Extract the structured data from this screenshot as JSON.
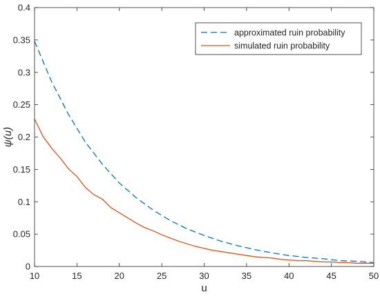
{
  "chart_data": {
    "type": "line",
    "xlabel": "u",
    "ylabel": "ψ(u)",
    "xlim": [
      10,
      50
    ],
    "ylim": [
      0,
      0.4
    ],
    "xticks": [
      "10",
      "15",
      "20",
      "25",
      "30",
      "35",
      "40",
      "45",
      "50"
    ],
    "yticks": [
      "0",
      "0.05",
      "0.1",
      "0.15",
      "0.2",
      "0.25",
      "0.3",
      "0.35",
      "0.4"
    ],
    "grid": false,
    "legend_position": "top-right",
    "series": [
      {
        "name": "approximated ruin probability",
        "color": "#0072BD",
        "style": "dashed",
        "x": [
          10,
          12,
          14,
          16,
          18,
          20,
          22,
          24,
          26,
          28,
          30,
          32,
          34,
          36,
          38,
          40,
          42,
          44,
          46,
          48,
          50
        ],
        "y": [
          0.348,
          0.286,
          0.235,
          0.192,
          0.158,
          0.129,
          0.106,
          0.087,
          0.071,
          0.058,
          0.048,
          0.039,
          0.032,
          0.026,
          0.021,
          0.017,
          0.014,
          0.012,
          0.009,
          0.008,
          0.006
        ]
      },
      {
        "name": "simulated ruin probability",
        "color": "#D95319",
        "style": "solid",
        "x": [
          10,
          11,
          12,
          13,
          14,
          15,
          16,
          17,
          18,
          19,
          20,
          21,
          22,
          23,
          24,
          25,
          26,
          27,
          28,
          29,
          30,
          31,
          32,
          33,
          34,
          35,
          36,
          37,
          38,
          39,
          40,
          41,
          42,
          43,
          44,
          45,
          46,
          47,
          48,
          49,
          50
        ],
        "y": [
          0.228,
          0.201,
          0.183,
          0.168,
          0.151,
          0.139,
          0.122,
          0.111,
          0.104,
          0.091,
          0.083,
          0.075,
          0.067,
          0.06,
          0.055,
          0.049,
          0.044,
          0.039,
          0.035,
          0.031,
          0.028,
          0.025,
          0.023,
          0.021,
          0.019,
          0.017,
          0.015,
          0.014,
          0.013,
          0.011,
          0.01,
          0.009,
          0.009,
          0.008,
          0.007,
          0.007,
          0.006,
          0.006,
          0.005,
          0.005,
          0.005
        ]
      }
    ]
  }
}
